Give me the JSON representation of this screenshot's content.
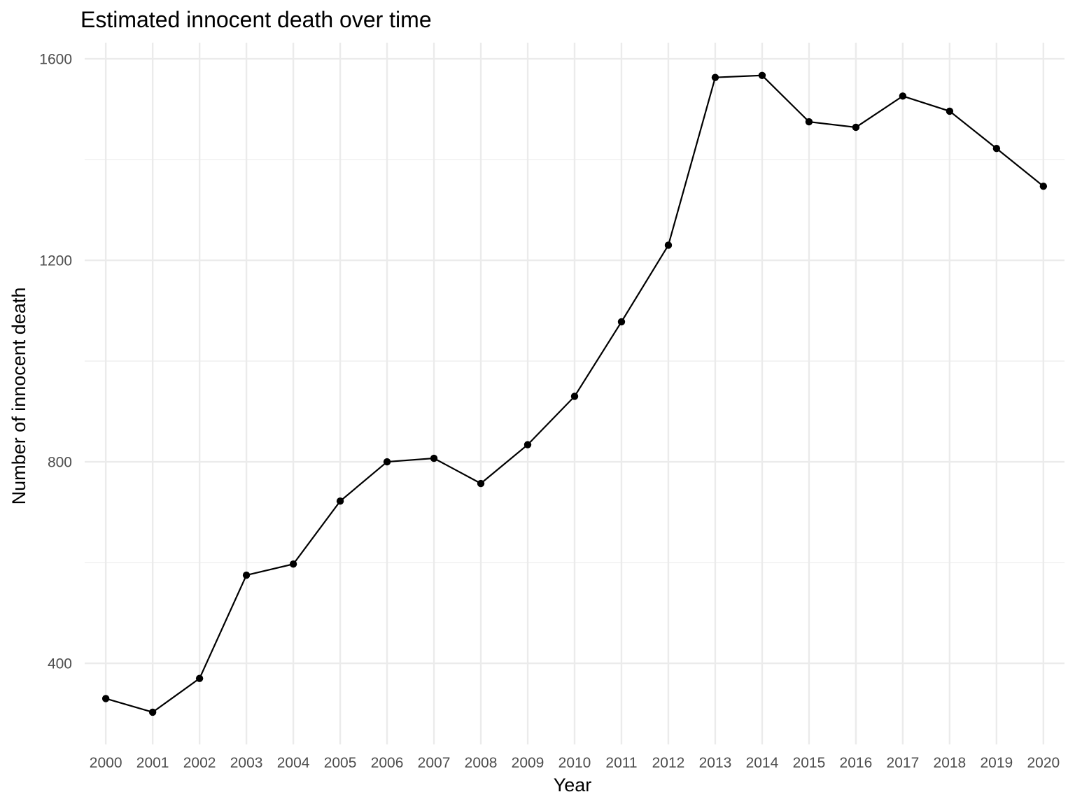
{
  "chart_data": {
    "type": "line",
    "title": "Estimated innocent death over time",
    "xlabel": "Year",
    "ylabel": "Number of innocent death",
    "x": [
      2000,
      2001,
      2002,
      2003,
      2004,
      2005,
      2006,
      2007,
      2008,
      2009,
      2010,
      2011,
      2012,
      2013,
      2014,
      2015,
      2016,
      2017,
      2018,
      2019,
      2020
    ],
    "values": [
      330,
      303,
      370,
      575,
      597,
      722,
      800,
      807,
      757,
      834,
      930,
      1078,
      1230,
      1563,
      1567,
      1475,
      1464,
      1526,
      1496,
      1422,
      1347
    ],
    "y_ticks": [
      400,
      800,
      1200,
      1600
    ],
    "ylim": [
      239,
      1632
    ],
    "xlim": [
      1999.55,
      2020.45
    ],
    "grid": true,
    "legend": "none",
    "line_color": "#000000",
    "grid_color": "#ebebeb"
  }
}
